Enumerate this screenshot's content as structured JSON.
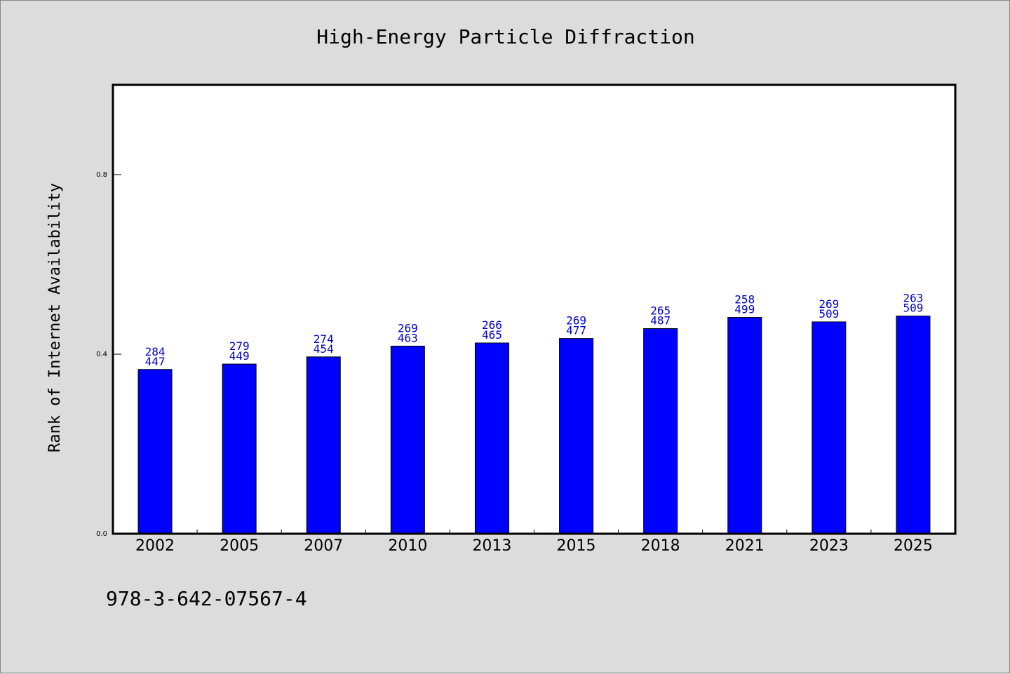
{
  "chart_data": {
    "type": "bar",
    "title": "High-Energy Particle Diffraction",
    "xlabel": "",
    "ylabel": "Rank of Internet Availability",
    "categories": [
      "2002",
      "2005",
      "2007",
      "2010",
      "2013",
      "2015",
      "2018",
      "2021",
      "2023",
      "2025"
    ],
    "values": [
      0.366,
      0.378,
      0.394,
      0.418,
      0.425,
      0.435,
      0.457,
      0.482,
      0.472,
      0.485
    ],
    "labels_top": [
      "284",
      "279",
      "274",
      "269",
      "266",
      "269",
      "265",
      "258",
      "269",
      "263"
    ],
    "labels_bottom": [
      "447",
      "449",
      "454",
      "463",
      "465",
      "477",
      "487",
      "499",
      "509",
      "509"
    ],
    "yticks": [
      "0.0",
      "0.4",
      "0.8"
    ],
    "ytick_values": [
      0.0,
      0.4,
      0.8
    ],
    "ylim": [
      0,
      1.0
    ],
    "grid": false,
    "bar_color": "#0000ff",
    "label_color": "#0000cc"
  },
  "footer_text": "978-3-642-07567-4"
}
